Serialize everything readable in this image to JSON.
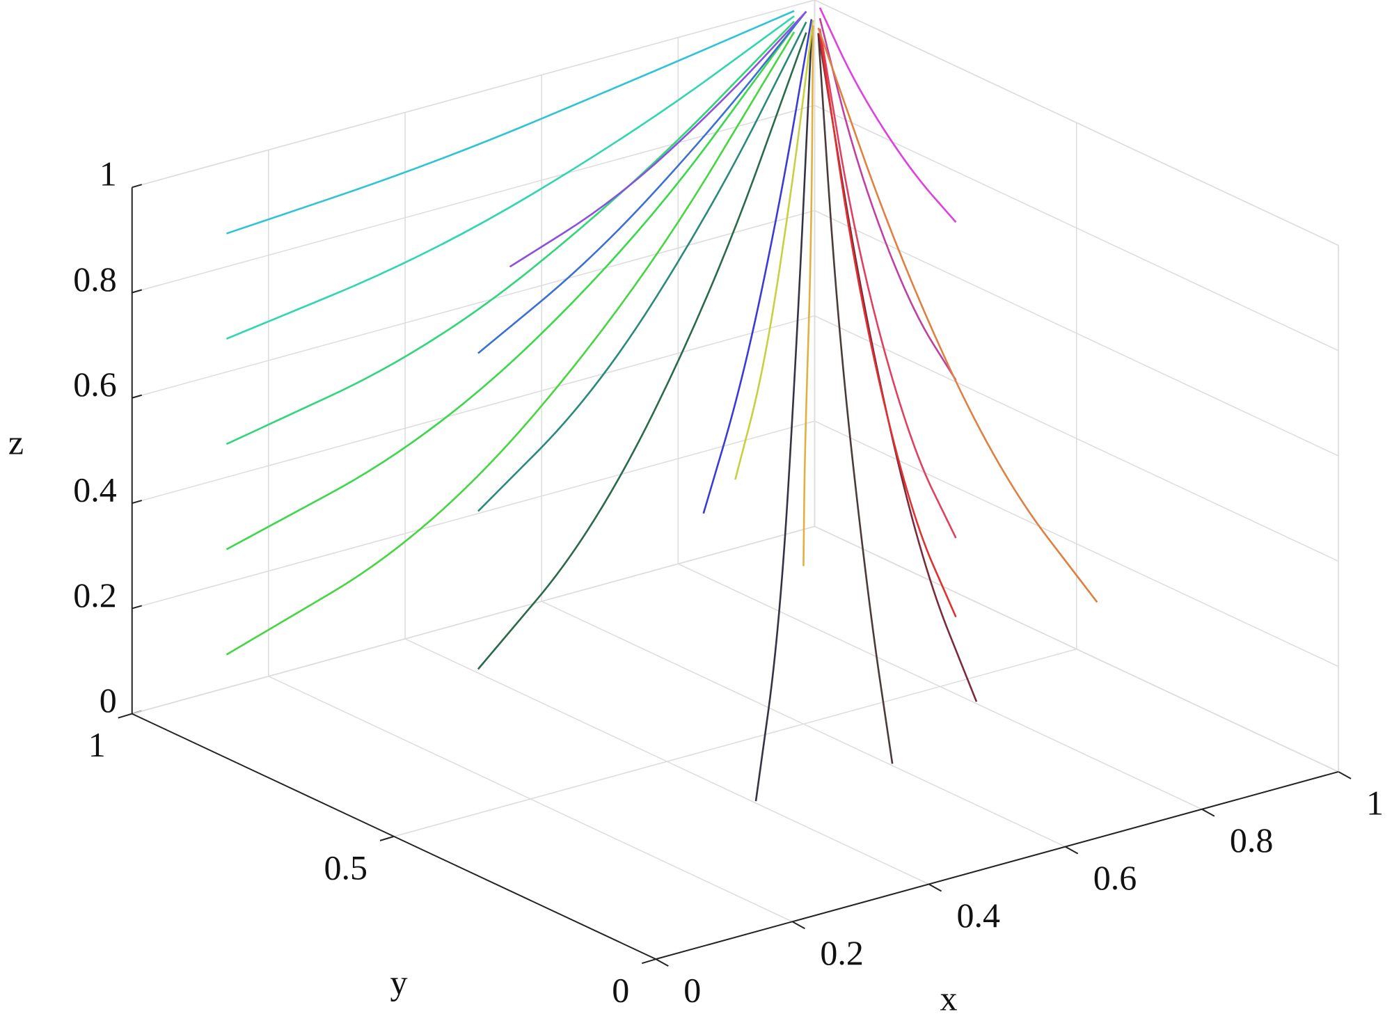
{
  "chart_data": {
    "type": "line3d",
    "xlabel": "x",
    "ylabel": "y",
    "zlabel": "z",
    "xlim": [
      0,
      1
    ],
    "ylim": [
      0,
      1
    ],
    "zlim": [
      0,
      1
    ],
    "xticks": [
      0,
      0.2,
      0.4,
      0.6,
      0.8,
      1
    ],
    "yticks": [
      0,
      0.5,
      1
    ],
    "zticks": [
      0,
      0.2,
      0.4,
      0.6,
      0.8,
      1
    ],
    "grid": true,
    "series": [
      {
        "color": "#2ec4d6",
        "x": [
          0.1,
          0.42,
          0.73,
          0.97
        ],
        "y": [
          0.95,
          0.97,
          0.99,
          1.0
        ],
        "z": [
          0.9,
          0.91,
          0.95,
          0.99
        ]
      },
      {
        "color": "#2fd6b0",
        "x": [
          0.1,
          0.42,
          0.73,
          0.97
        ],
        "y": [
          0.95,
          0.97,
          0.99,
          1.0
        ],
        "z": [
          0.7,
          0.74,
          0.85,
          0.98
        ]
      },
      {
        "color": "#30d67a",
        "x": [
          0.1,
          0.42,
          0.73,
          0.97
        ],
        "y": [
          0.95,
          0.97,
          0.99,
          1.0
        ],
        "z": [
          0.5,
          0.56,
          0.75,
          0.97
        ]
      },
      {
        "color": "#3ad84a",
        "x": [
          0.1,
          0.42,
          0.73,
          0.97
        ],
        "y": [
          0.95,
          0.97,
          0.99,
          1.0
        ],
        "z": [
          0.3,
          0.39,
          0.64,
          0.96
        ]
      },
      {
        "color": "#45d640",
        "x": [
          0.1,
          0.42,
          0.73,
          0.97
        ],
        "y": [
          0.95,
          0.97,
          0.99,
          1.0
        ],
        "z": [
          0.1,
          0.21,
          0.54,
          0.95
        ]
      },
      {
        "color": "#3a6fd6",
        "x": [
          0.2,
          0.48,
          0.76,
          0.98
        ],
        "y": [
          0.6,
          0.74,
          0.88,
          0.99
        ],
        "z": [
          0.8,
          0.82,
          0.9,
          0.99
        ]
      },
      {
        "color": "#2a8a7a",
        "x": [
          0.2,
          0.48,
          0.76,
          0.98
        ],
        "y": [
          0.6,
          0.74,
          0.88,
          0.99
        ],
        "z": [
          0.5,
          0.56,
          0.75,
          0.97
        ]
      },
      {
        "color": "#2a6a4a",
        "x": [
          0.2,
          0.48,
          0.76,
          0.98
        ],
        "y": [
          0.6,
          0.74,
          0.88,
          0.99
        ],
        "z": [
          0.2,
          0.3,
          0.59,
          0.95
        ]
      },
      {
        "color": "#3a3ad6",
        "x": [
          0.3,
          0.55,
          0.79,
          0.98
        ],
        "y": [
          0.3,
          0.55,
          0.79,
          0.98
        ],
        "z": [
          0.6,
          0.65,
          0.8,
          0.98
        ]
      },
      {
        "color": "#333344",
        "x": [
          0.3,
          0.55,
          0.79,
          0.98
        ],
        "y": [
          0.2,
          0.48,
          0.76,
          0.98
        ],
        "z": [
          0.1,
          0.21,
          0.54,
          0.95
        ]
      },
      {
        "color": "#4a3a3a",
        "x": [
          0.5,
          0.68,
          0.85,
          0.99
        ],
        "y": [
          0.2,
          0.48,
          0.76,
          0.98
        ],
        "z": [
          0.1,
          0.21,
          0.54,
          0.95
        ]
      },
      {
        "color": "#c8d040",
        "x": [
          0.5,
          0.68,
          0.85,
          0.99
        ],
        "y": [
          0.5,
          0.68,
          0.85,
          0.99
        ],
        "z": [
          0.5,
          0.56,
          0.75,
          0.97
        ]
      },
      {
        "color": "#e0b040",
        "x": [
          0.6,
          0.74,
          0.88,
          0.99
        ],
        "y": [
          0.5,
          0.68,
          0.85,
          0.99
        ],
        "z": [
          0.3,
          0.39,
          0.64,
          0.96
        ]
      },
      {
        "color": "#7a2a3a",
        "x": [
          0.7,
          0.81,
          0.91,
          0.99
        ],
        "y": [
          0.3,
          0.55,
          0.79,
          0.98
        ],
        "z": [
          0.1,
          0.21,
          0.54,
          0.95
        ]
      },
      {
        "color": "#e040e0",
        "x": [
          0.9,
          0.94,
          0.97,
          1.0
        ],
        "y": [
          0.6,
          0.74,
          0.88,
          0.99
        ],
        "z": [
          0.8,
          0.82,
          0.9,
          0.99
        ]
      },
      {
        "color": "#c040a0",
        "x": [
          0.9,
          0.94,
          0.97,
          1.0
        ],
        "y": [
          0.6,
          0.74,
          0.88,
          0.99
        ],
        "z": [
          0.5,
          0.56,
          0.75,
          0.97
        ]
      },
      {
        "color": "#e04060",
        "x": [
          0.9,
          0.94,
          0.97,
          1.0
        ],
        "y": [
          0.6,
          0.74,
          0.88,
          0.99
        ],
        "z": [
          0.2,
          0.3,
          0.59,
          0.95
        ]
      },
      {
        "color": "#e03030",
        "x": [
          0.9,
          0.94,
          0.97,
          1.0
        ],
        "y": [
          0.6,
          0.74,
          0.88,
          0.99
        ],
        "z": [
          0.05,
          0.17,
          0.52,
          0.94
        ]
      },
      {
        "color": "#e08040",
        "x": [
          0.8,
          0.87,
          0.94,
          0.99
        ],
        "y": [
          0.2,
          0.48,
          0.76,
          0.98
        ],
        "z": [
          0.3,
          0.39,
          0.64,
          0.96
        ]
      },
      {
        "color": "#8a50e0",
        "x": [
          0.4,
          0.61,
          0.82,
          0.98
        ],
        "y": [
          0.8,
          0.87,
          0.94,
          0.99
        ],
        "z": [
          0.8,
          0.82,
          0.9,
          0.99
        ]
      }
    ]
  }
}
